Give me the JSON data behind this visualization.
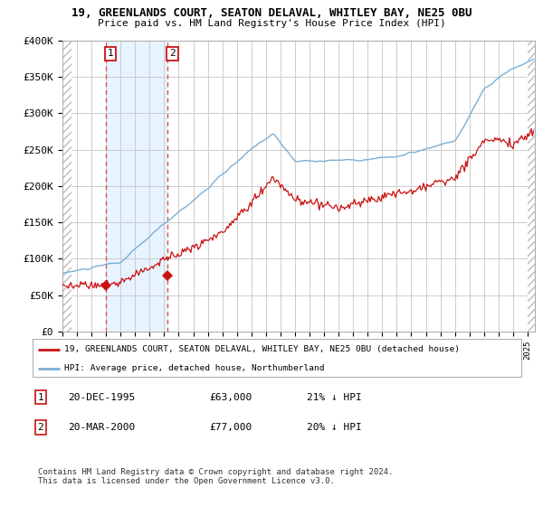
{
  "title_line1": "19, GREENLANDS COURT, SEATON DELAVAL, WHITLEY BAY, NE25 0BU",
  "title_line2": "Price paid vs. HM Land Registry's House Price Index (HPI)",
  "ylim": [
    0,
    400000
  ],
  "yticks": [
    0,
    50000,
    100000,
    150000,
    200000,
    250000,
    300000,
    350000,
    400000
  ],
  "ytick_labels": [
    "£0",
    "£50K",
    "£100K",
    "£150K",
    "£200K",
    "£250K",
    "£300K",
    "£350K",
    "£400K"
  ],
  "hpi_color": "#7bafd4",
  "price_color": "#cc1111",
  "legend_line1": "19, GREENLANDS COURT, SEATON DELAVAL, WHITLEY BAY, NE25 0BU (detached house)",
  "legend_line2": "HPI: Average price, detached house, Northumberland",
  "footnote": "Contains HM Land Registry data © Crown copyright and database right 2024.\nThis data is licensed under the Open Government Licence v3.0.",
  "background_color": "#ffffff",
  "vline_color": "#dd4444",
  "grid_color": "#cccccc",
  "sale_marker_color": "#cc1111",
  "shaded_region_color": "#ddeeff",
  "hatch_color": "#cccccc",
  "sale1_x": 1995.96,
  "sale1_price": 63000,
  "sale2_x": 2000.21,
  "sale2_price": 77000,
  "xlim_left": 1993.0,
  "xlim_right": 2025.5,
  "hatch_left_end": 1993.6,
  "hatch_right_start": 2025.0
}
